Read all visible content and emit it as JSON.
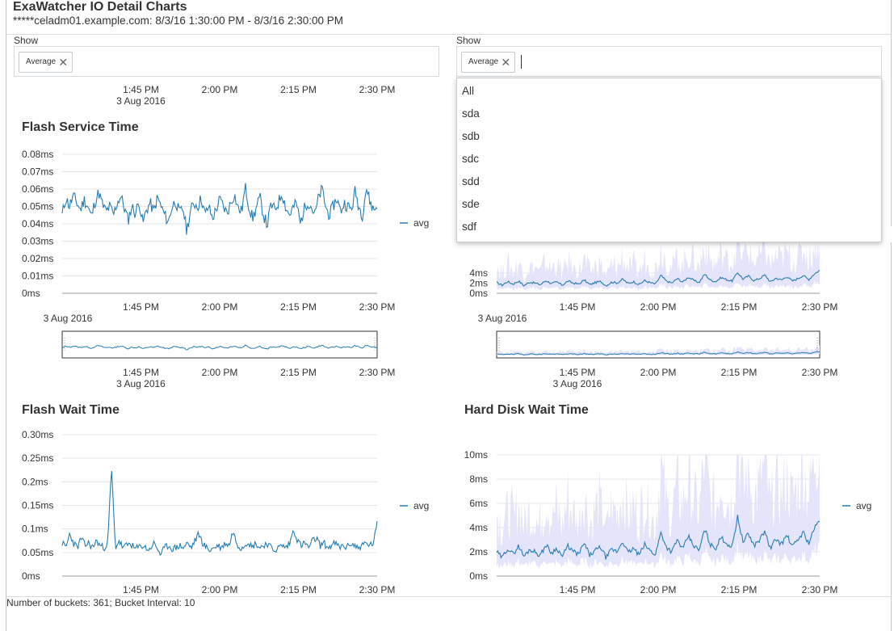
{
  "header": {
    "title": "ExaWatcher IO Detail Charts",
    "subtitle": "*****celadm01.example.com: 8/3/16 1:30:00 PM - 8/3/16 2:30:00 PM"
  },
  "filters": {
    "left": {
      "label": "Show",
      "chip": "Average"
    },
    "right": {
      "label": "Show",
      "chip": "Average"
    }
  },
  "dropdown": {
    "options": [
      "All",
      "sda",
      "sdb",
      "sdc",
      "sdd",
      "sde",
      "sdf"
    ]
  },
  "footer": {
    "text": "Number of buckets: 361; Bucket Interval: 10"
  },
  "colors": {
    "line": "#267db3",
    "band": "#e4e4fa",
    "grid": "#e6e6e6",
    "axis": "#9e9e9e"
  },
  "time_axis": {
    "ticks": [
      "1:45 PM",
      "2:00 PM",
      "2:15 PM",
      "2:30 PM"
    ],
    "date_label": "3 Aug 2016"
  },
  "chart_data": [
    {
      "type": "line",
      "title": "Flash Service Time",
      "x_range": [
        "1:30 PM",
        "2:30 PM"
      ],
      "y_ticks": [
        "0ms",
        "0.01ms",
        "0.02ms",
        "0.03ms",
        "0.04ms",
        "0.05ms",
        "0.06ms",
        "0.07ms",
        "0.08ms"
      ],
      "ylim": [
        0,
        0.08
      ],
      "unit": "ms",
      "legend": "avg",
      "legend_position": "right",
      "series": [
        {
          "name": "avg",
          "values": [
            0.045,
            0.055,
            0.05,
            0.056,
            0.052,
            0.048,
            0.054,
            0.05,
            0.044,
            0.053,
            0.058,
            0.051,
            0.047,
            0.05,
            0.045,
            0.052,
            0.056,
            0.049,
            0.042,
            0.05,
            0.046,
            0.053,
            0.04,
            0.048,
            0.052,
            0.047,
            0.055,
            0.05,
            0.045,
            0.041,
            0.05,
            0.053,
            0.046,
            0.049,
            0.036,
            0.047,
            0.052,
            0.05,
            0.055,
            0.045,
            0.05,
            0.043,
            0.048,
            0.054,
            0.05,
            0.046,
            0.052,
            0.057,
            0.049,
            0.047,
            0.061,
            0.05,
            0.043,
            0.049,
            0.055,
            0.045,
            0.039,
            0.051,
            0.048,
            0.052,
            0.058,
            0.05,
            0.045,
            0.049,
            0.052,
            0.04,
            0.048,
            0.053,
            0.05,
            0.045,
            0.055,
            0.06,
            0.049,
            0.045,
            0.05,
            0.055,
            0.047,
            0.052,
            0.05,
            0.048,
            0.059,
            0.05,
            0.045,
            0.061,
            0.053,
            0.048,
            0.05
          ]
        }
      ]
    },
    {
      "type": "area",
      "title": "",
      "x_range": [
        "1:30 PM",
        "2:30 PM"
      ],
      "y_ticks": [
        "0ms",
        "2ms",
        "4ms"
      ],
      "ylim": [
        0,
        10
      ],
      "unit": "ms",
      "note": "upper portion hidden by open dropdown",
      "series": [
        {
          "name": "avg",
          "values": [
            2.1,
            1.6,
            2.3,
            1.8,
            2.4,
            1.5,
            2.2,
            2.0,
            1.7,
            2.5,
            1.9,
            2.2,
            1.6,
            2.4,
            2.0,
            1.8,
            2.6,
            1.7,
            2.1,
            2.3,
            1.5,
            2.2,
            2.0,
            2.8,
            1.9,
            2.3,
            1.7,
            2.5,
            2.1,
            1.8,
            3.5,
            2.4,
            2.0,
            2.9,
            2.2,
            3.2,
            2.5,
            2.1,
            3.8,
            2.6,
            2.3,
            3.1,
            2.7,
            2.4,
            4.1,
            2.8,
            3.4,
            2.5,
            2.9,
            3.6,
            2.2,
            3.0,
            2.6,
            3.3,
            2.4,
            2.9,
            3.5,
            2.7,
            3.8,
            4.5
          ]
        }
      ]
    },
    {
      "type": "line",
      "title": "Flash Wait Time",
      "x_range": [
        "1:30 PM",
        "2:30 PM"
      ],
      "y_ticks": [
        "0ms",
        "0.05ms",
        "0.1ms",
        "0.15ms",
        "0.2ms",
        "0.25ms",
        "0.30ms"
      ],
      "ylim": [
        0,
        0.3
      ],
      "unit": "ms",
      "legend": "avg",
      "legend_position": "right",
      "series": [
        {
          "name": "avg",
          "values": [
            0.07,
            0.06,
            0.09,
            0.07,
            0.06,
            0.08,
            0.065,
            0.07,
            0.06,
            0.075,
            0.065,
            0.06,
            0.07,
            0.23,
            0.06,
            0.075,
            0.06,
            0.065,
            0.07,
            0.058,
            0.06,
            0.065,
            0.06,
            0.055,
            0.07,
            0.06,
            0.045,
            0.06,
            0.065,
            0.058,
            0.06,
            0.065,
            0.06,
            0.07,
            0.06,
            0.075,
            0.09,
            0.07,
            0.06,
            0.055,
            0.06,
            0.065,
            0.06,
            0.07,
            0.065,
            0.095,
            0.07,
            0.06,
            0.065,
            0.075,
            0.06,
            0.07,
            0.06,
            0.065,
            0.07,
            0.06,
            0.055,
            0.06,
            0.065,
            0.06,
            0.07,
            0.1,
            0.075,
            0.065,
            0.07,
            0.06,
            0.075,
            0.08,
            0.065,
            0.07,
            0.06,
            0.065,
            0.07,
            0.06,
            0.065,
            0.06,
            0.07,
            0.065,
            0.06,
            0.065,
            0.07,
            0.065,
            0.07,
            0.11
          ]
        }
      ]
    },
    {
      "type": "area",
      "title": "Hard Disk Wait Time",
      "x_range": [
        "1:30 PM",
        "2:30 PM"
      ],
      "y_ticks": [
        "0ms",
        "2ms",
        "4ms",
        "6ms",
        "8ms",
        "10ms"
      ],
      "ylim": [
        0,
        10
      ],
      "unit": "ms",
      "legend": "avg",
      "legend_position": "right",
      "series": [
        {
          "name": "avg",
          "values": [
            2.0,
            1.5,
            2.3,
            1.8,
            2.5,
            1.6,
            2.2,
            2.0,
            1.7,
            2.6,
            1.9,
            2.3,
            1.6,
            2.5,
            2.0,
            1.8,
            2.7,
            1.7,
            2.1,
            2.4,
            1.5,
            2.2,
            2.0,
            2.9,
            1.9,
            2.3,
            1.7,
            2.6,
            2.1,
            1.8,
            3.6,
            2.4,
            2.0,
            3.0,
            2.2,
            3.3,
            2.5,
            2.1,
            3.9,
            2.6,
            2.3,
            3.2,
            2.7,
            2.4,
            4.9,
            2.8,
            3.5,
            2.5,
            3.0,
            3.7,
            2.2,
            3.1,
            2.6,
            3.4,
            2.4,
            3.0,
            3.6,
            2.7,
            3.9,
            4.6
          ]
        }
      ]
    }
  ]
}
